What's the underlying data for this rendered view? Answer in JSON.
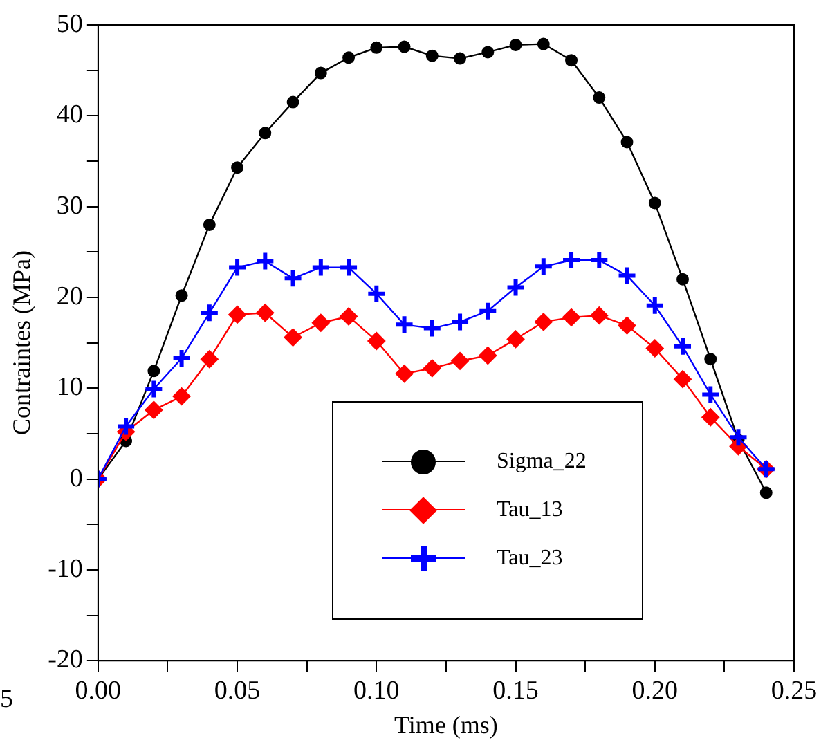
{
  "chart_data": {
    "type": "line",
    "xlabel": "Time (ms)",
    "ylabel": "Contraintes (MPa)",
    "x": [
      0,
      0.01,
      0.02,
      0.03,
      0.04,
      0.05,
      0.06,
      0.07,
      0.08,
      0.09,
      0.1,
      0.11,
      0.12,
      0.13,
      0.14,
      0.15,
      0.16,
      0.17,
      0.18,
      0.19,
      0.2,
      0.21,
      0.22,
      0.23,
      0.24
    ],
    "series": [
      {
        "name": "Sigma_22",
        "color": "#000000",
        "marker": "circle",
        "values": [
          0,
          4.2,
          11.9,
          20.2,
          28,
          34.3,
          38.1,
          41.5,
          44.7,
          46.4,
          47.5,
          47.6,
          46.6,
          46.3,
          47,
          47.8,
          47.9,
          46.1,
          42,
          37.1,
          30.4,
          22,
          13.2,
          4.3,
          -1.5
        ]
      },
      {
        "name": "Tau_13",
        "color": "#ff0000",
        "marker": "diamond",
        "values": [
          0,
          5.2,
          7.6,
          9.1,
          13.2,
          18.1,
          18.3,
          15.6,
          17.2,
          17.9,
          15.2,
          11.6,
          12.2,
          13,
          13.6,
          15.4,
          17.3,
          17.8,
          18,
          16.9,
          14.4,
          11,
          6.8,
          3.6,
          1.1
        ]
      },
      {
        "name": "Tau_23",
        "color": "#0000ff",
        "marker": "cross",
        "values": [
          0,
          5.8,
          9.9,
          13.3,
          18.3,
          23.3,
          24,
          22.1,
          23.3,
          23.3,
          20.4,
          17,
          16.6,
          17.3,
          18.5,
          21.1,
          23.4,
          24.1,
          24.1,
          22.4,
          19.1,
          14.6,
          9.3,
          4.6,
          1.1
        ]
      }
    ],
    "xlim": [
      0,
      0.25
    ],
    "xticks": [
      {
        "value": 0,
        "label": "0.00"
      },
      {
        "value": 0.025,
        "label": null
      },
      0.05,
      {
        "value": 0.075,
        "label": null
      },
      {
        "value": 0.1,
        "label": "0.10"
      },
      {
        "value": 0.125,
        "label": null
      },
      0.15,
      {
        "value": 0.175,
        "label": null
      },
      {
        "value": 0.2,
        "label": "0.20"
      },
      {
        "value": 0.225,
        "label": null
      },
      0.25
    ],
    "ylim": [
      -20,
      50
    ],
    "yticks": [
      -20,
      {
        "value": -15,
        "label": null
      },
      -10,
      {
        "value": -5,
        "label": null
      },
      0,
      {
        "value": 5,
        "label": null
      },
      10,
      {
        "value": 15,
        "label": null
      },
      20,
      {
        "value": 25,
        "label": null
      },
      30,
      {
        "value": 35,
        "label": null
      },
      40,
      {
        "value": 45,
        "label": null
      },
      50
    ],
    "grid": false,
    "legend": "bottom",
    "line_style": "solid",
    "annotations": [
      "5"
    ]
  }
}
